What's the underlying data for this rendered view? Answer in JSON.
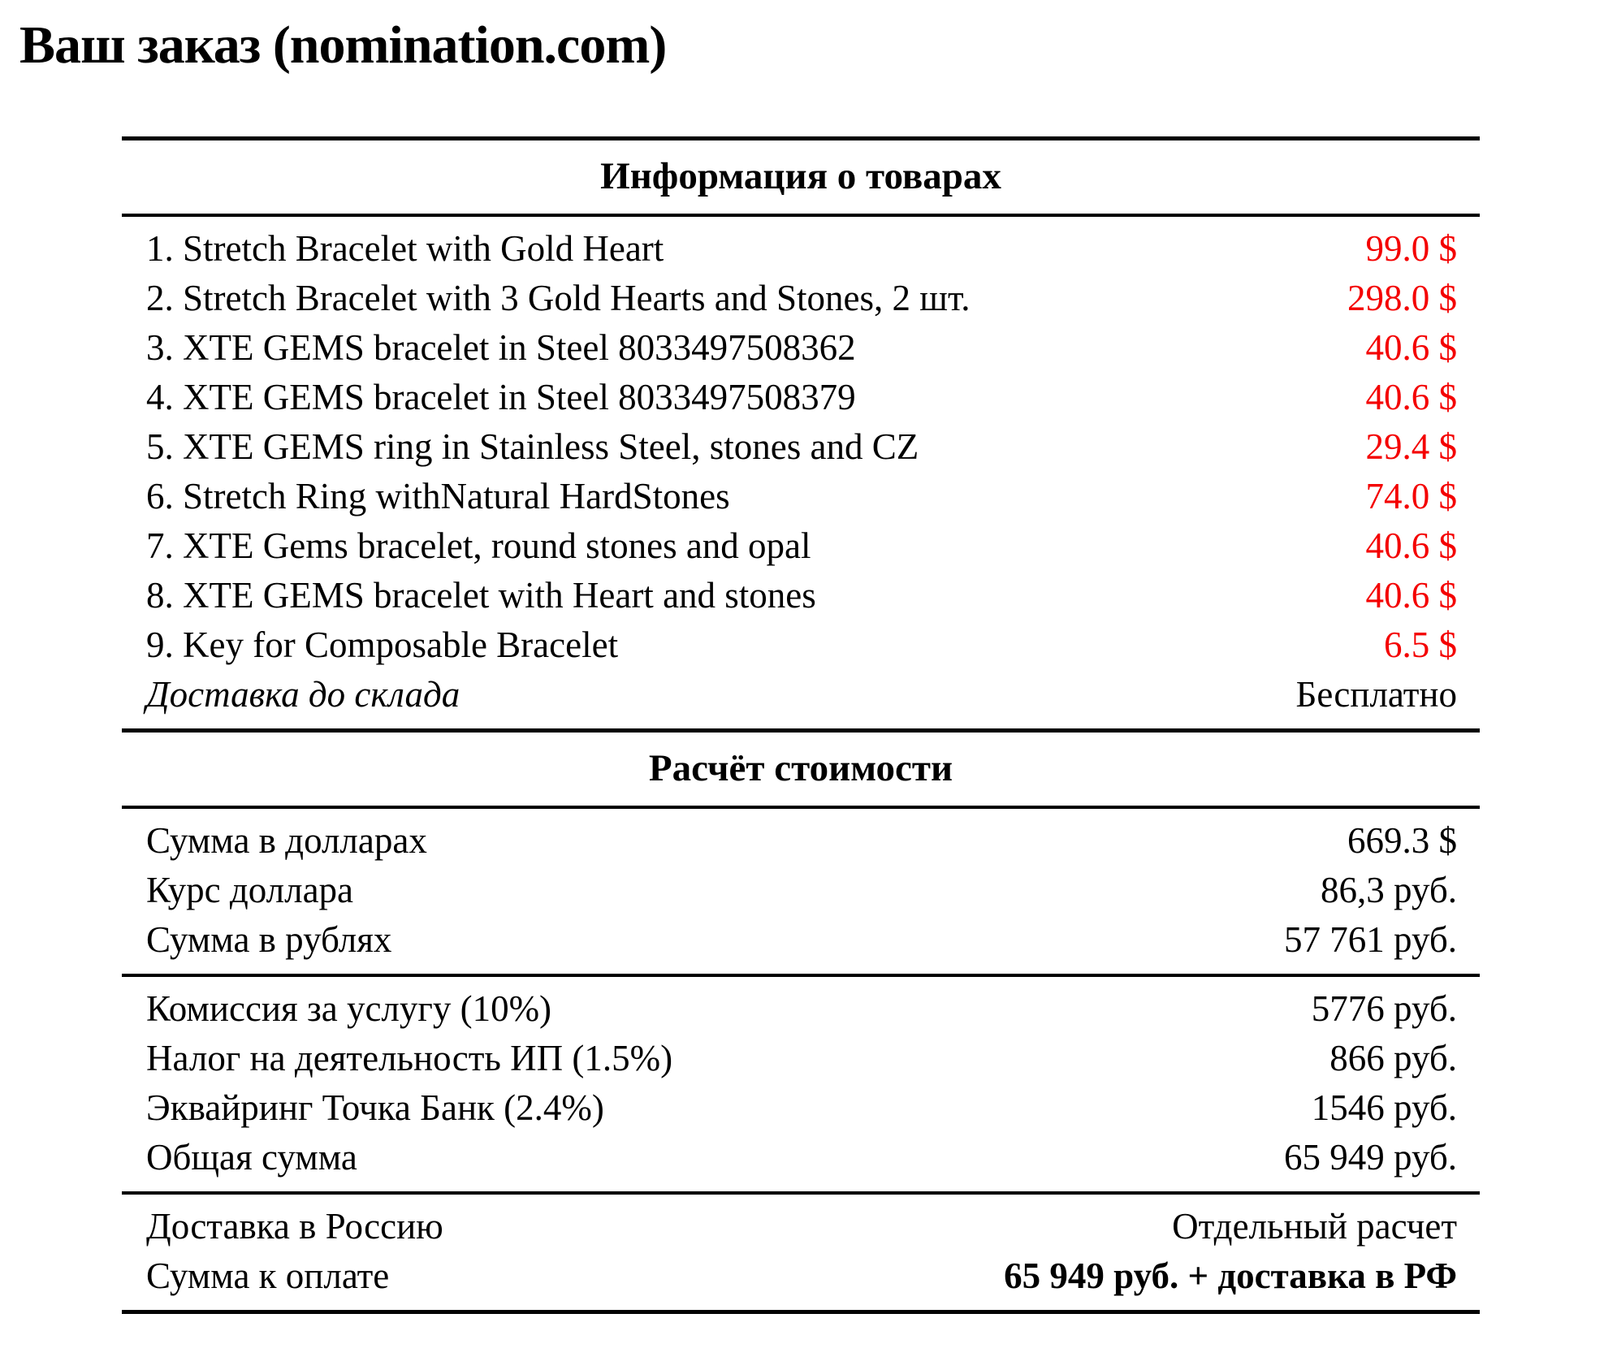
{
  "title": "Ваш заказ (nomination.com)",
  "colors": {
    "price_red": "#f40000",
    "text": "#000000",
    "background": "#ffffff"
  },
  "products": {
    "header": "Информация о товарах",
    "rows": [
      {
        "name": "1. Stretch Bracelet with Gold Heart",
        "price": "99.0 $"
      },
      {
        "name": "2. Stretch Bracelet with 3 Gold Hearts and Stones, 2 шт.",
        "price": "298.0 $"
      },
      {
        "name": "3. XTE GEMS bracelet in Steel 8033497508362",
        "price": "40.6 $"
      },
      {
        "name": "4. XTE GEMS bracelet in Steel 8033497508379",
        "price": "40.6 $"
      },
      {
        "name": "5. XTE GEMS ring in Stainless Steel, stones and CZ",
        "price": "29.4 $"
      },
      {
        "name": "6. Stretch Ring withNatural HardStones",
        "price": "74.0 $"
      },
      {
        "name": "7. XTE Gems bracelet, round stones and opal",
        "price": "40.6 $"
      },
      {
        "name": "8. XTE GEMS bracelet with Heart and stones",
        "price": "40.6 $"
      },
      {
        "name": "9. Key for Composable Bracelet",
        "price": "6.5 $"
      }
    ],
    "shipping": {
      "name": "Доставка до склада",
      "price": "Бесплатно"
    }
  },
  "costs": {
    "header": "Расчёт стоимости",
    "subtotal": [
      {
        "name": "Сумма в долларах",
        "value": "669.3 $"
      },
      {
        "name": "Курс доллара",
        "value": "86,3 руб."
      },
      {
        "name": "Сумма в рублях",
        "value": "57 761 руб."
      }
    ],
    "fees": [
      {
        "name": "Комиссия за услугу (10%)",
        "value": "5776 руб."
      },
      {
        "name": "Налог на деятельность ИП (1.5%)",
        "value": "866 руб."
      },
      {
        "name": "Эквайринг Точка Банк (2.4%)",
        "value": "1546 руб."
      },
      {
        "name": "Общая сумма",
        "value": "65 949 руб."
      }
    ],
    "final": [
      {
        "name": "Доставка в Россию",
        "value": "Отдельный расчет"
      },
      {
        "name": "Сумма к оплате",
        "value": "65 949 руб. + доставка в РФ"
      }
    ]
  }
}
